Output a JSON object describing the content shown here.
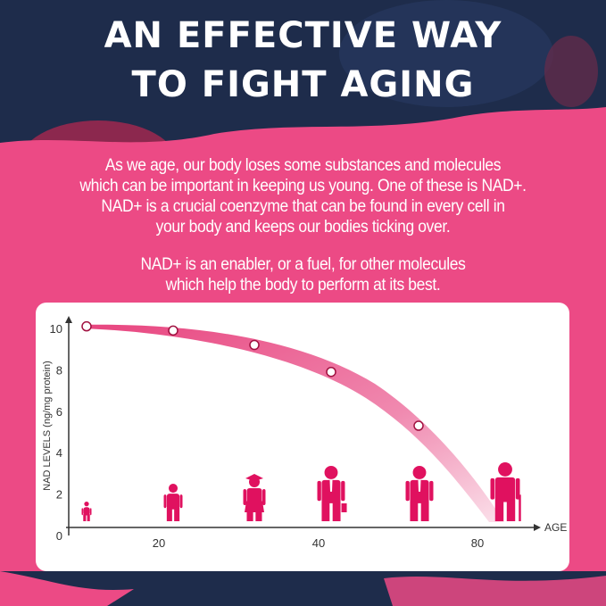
{
  "title": {
    "line1": "AN EFFECTIVE WAY",
    "line2": "TO FIGHT AGING"
  },
  "paragraphs": [
    [
      "As we age, our body loses some substances and molecules",
      "which can be important in keeping us young. One of these is NAD+.",
      "NAD+ is a crucial coenzyme that can be found in every cell in",
      "your body and keeps our bodies ticking over."
    ],
    [
      "NAD+ is an enabler, or a fuel, for other molecules",
      "which help the body to perform at its best."
    ]
  ],
  "colors": {
    "pink": "#ec4a85",
    "navy": "#1e2c4b",
    "figure": "#e0115f"
  },
  "chart_data": {
    "type": "line",
    "title": "",
    "xlabel": "AGE",
    "ylabel": "NAD LEVELS (ng/mg protein)",
    "ylim": [
      0,
      10
    ],
    "y_ticks": [
      "0",
      "2",
      "4",
      "6",
      "8",
      "10"
    ],
    "x_ticks": [
      "20",
      "40",
      "80"
    ],
    "grid": false,
    "points_y": [
      10.1,
      9.9,
      9.2,
      7.9,
      5.3
    ],
    "trend_end_y": 0,
    "figures": [
      "baby-icon",
      "child-icon",
      "graduate-icon",
      "businessman-briefcase-icon",
      "businessman-icon",
      "elderly-cane-icon"
    ]
  }
}
